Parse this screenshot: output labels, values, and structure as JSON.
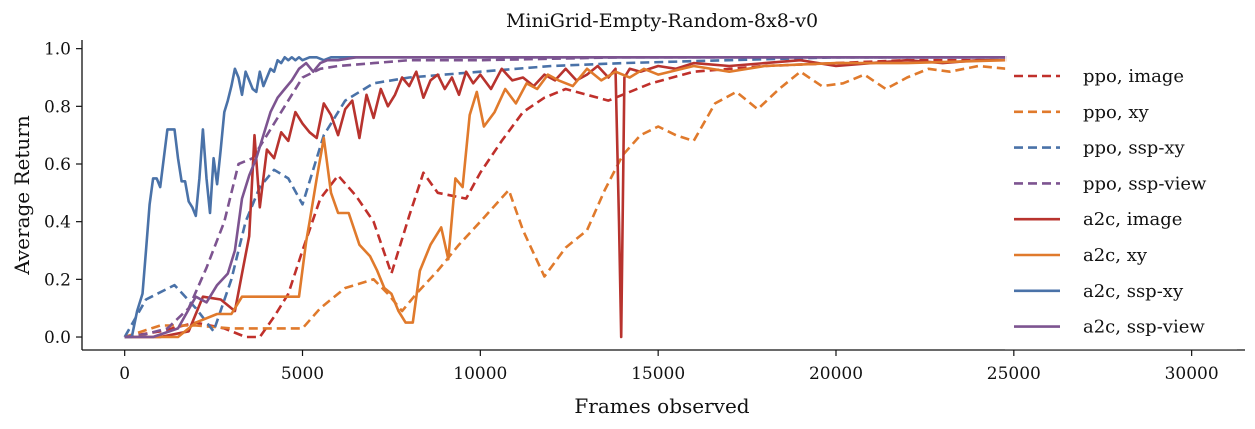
{
  "chart_data": {
    "type": "line",
    "title": "MiniGrid-Empty-Random-8x8-v0",
    "xlabel": "Frames observed",
    "ylabel": "Average Return",
    "xlim": [
      -1200,
      31500
    ],
    "ylim": [
      -0.045,
      1.03
    ],
    "xticks": [
      0,
      5000,
      10000,
      15000,
      20000,
      25000,
      30000
    ],
    "xtick_labels": [
      "0",
      "5000",
      "10000",
      "15000",
      "20000",
      "25000",
      "30000"
    ],
    "yticks": [
      0.0,
      0.2,
      0.4,
      0.6,
      0.8,
      1.0
    ],
    "ytick_labels": [
      "0.0",
      "0.2",
      "0.4",
      "0.6",
      "0.8",
      "1.0"
    ],
    "grid": false,
    "legend_position": "right",
    "series": [
      {
        "name": "ppo, image",
        "color": "#c0302b",
        "dash": "dashed",
        "width": 2.6,
        "x": [
          0,
          1000,
          2000,
          2800,
          3400,
          3800,
          4200,
          4600,
          5000,
          5500,
          6000,
          6500,
          7000,
          7500,
          8000,
          8400,
          8800,
          9200,
          9600,
          10000,
          10600,
          11200,
          11800,
          12400,
          13000,
          13600,
          14200,
          14800,
          15400,
          16000,
          17000,
          18000,
          20000,
          22000,
          24800
        ],
        "y": [
          0,
          0.02,
          0.05,
          0.03,
          0,
          0,
          0.07,
          0.15,
          0.3,
          0.48,
          0.56,
          0.49,
          0.4,
          0.22,
          0.42,
          0.57,
          0.5,
          0.49,
          0.48,
          0.57,
          0.68,
          0.78,
          0.83,
          0.86,
          0.84,
          0.82,
          0.85,
          0.88,
          0.9,
          0.92,
          0.93,
          0.94,
          0.95,
          0.96,
          0.96
        ]
      },
      {
        "name": "ppo, xy",
        "color": "#e07a2c",
        "dash": "dashed",
        "width": 2.6,
        "x": [
          0,
          1000,
          2000,
          3000,
          4000,
          5000,
          5500,
          6200,
          7000,
          7400,
          7800,
          8200,
          8800,
          9400,
          10000,
          10800,
          11200,
          11800,
          12400,
          13000,
          13500,
          14000,
          14500,
          15000,
          15500,
          16000,
          16600,
          17200,
          17800,
          18400,
          19000,
          19600,
          20200,
          20800,
          21400,
          22000,
          22600,
          23200,
          24000,
          24800
        ],
        "y": [
          0,
          0.04,
          0.04,
          0.03,
          0.03,
          0.03,
          0.1,
          0.17,
          0.2,
          0.15,
          0.09,
          0.15,
          0.23,
          0.32,
          0.4,
          0.51,
          0.37,
          0.21,
          0.31,
          0.37,
          0.51,
          0.63,
          0.7,
          0.73,
          0.7,
          0.68,
          0.81,
          0.85,
          0.79,
          0.86,
          0.92,
          0.87,
          0.88,
          0.91,
          0.86,
          0.9,
          0.93,
          0.92,
          0.94,
          0.93
        ]
      },
      {
        "name": "ppo, ssp-xy",
        "color": "#4a72a8",
        "dash": "dashed",
        "width": 2.6,
        "x": [
          0,
          600,
          1400,
          2000,
          2500,
          3000,
          3400,
          3800,
          4200,
          4600,
          5000,
          5600,
          6200,
          7000,
          8000,
          10000,
          12000,
          14000,
          17000,
          20000,
          24800
        ],
        "y": [
          0,
          0.13,
          0.18,
          0.1,
          0.02,
          0.2,
          0.4,
          0.52,
          0.58,
          0.55,
          0.46,
          0.7,
          0.82,
          0.88,
          0.9,
          0.92,
          0.94,
          0.95,
          0.96,
          0.97,
          0.97
        ]
      },
      {
        "name": "ppo, ssp-view",
        "color": "#7d5490",
        "dash": "dashed",
        "width": 2.6,
        "x": [
          0,
          600,
          1200,
          1800,
          2300,
          2800,
          3200,
          3600,
          4000,
          4500,
          5000,
          5500,
          6000,
          7000,
          8000,
          10000,
          14000,
          20000,
          24800
        ],
        "y": [
          0,
          0.01,
          0.03,
          0.1,
          0.24,
          0.4,
          0.6,
          0.62,
          0.7,
          0.8,
          0.9,
          0.93,
          0.94,
          0.95,
          0.96,
          0.96,
          0.97,
          0.97,
          0.97
        ]
      },
      {
        "name": "a2c, image",
        "color": "#b8332e",
        "dash": "solid",
        "width": 2.6,
        "x": [
          0,
          1000,
          1800,
          2200,
          2700,
          3100,
          3300,
          3500,
          3650,
          3800,
          4000,
          4200,
          4400,
          4600,
          4800,
          5000,
          5200,
          5400,
          5600,
          5800,
          6000,
          6200,
          6400,
          6600,
          6800,
          7000,
          7200,
          7400,
          7600,
          7800,
          8000,
          8200,
          8400,
          8600,
          8800,
          9000,
          9200,
          9400,
          9600,
          9800,
          10000,
          10300,
          10600,
          10900,
          11200,
          11500,
          11800,
          12100,
          12400,
          12700,
          13000,
          13300,
          13600,
          13800,
          13900,
          13960,
          14050,
          14200,
          14500,
          15000,
          15500,
          16000,
          17000,
          18000,
          19000,
          20000,
          21000,
          22000,
          23000,
          24000,
          24800
        ],
        "y": [
          0,
          0,
          0.02,
          0.14,
          0.13,
          0.09,
          0.22,
          0.35,
          0.7,
          0.45,
          0.65,
          0.62,
          0.71,
          0.68,
          0.78,
          0.74,
          0.71,
          0.69,
          0.81,
          0.77,
          0.7,
          0.79,
          0.82,
          0.69,
          0.84,
          0.76,
          0.86,
          0.8,
          0.84,
          0.9,
          0.87,
          0.92,
          0.83,
          0.89,
          0.91,
          0.86,
          0.9,
          0.84,
          0.92,
          0.88,
          0.91,
          0.86,
          0.93,
          0.89,
          0.9,
          0.87,
          0.91,
          0.89,
          0.93,
          0.89,
          0.91,
          0.94,
          0.9,
          0.93,
          0.4,
          0.0,
          0.9,
          0.93,
          0.92,
          0.94,
          0.93,
          0.95,
          0.94,
          0.95,
          0.96,
          0.94,
          0.95,
          0.96,
          0.95,
          0.96,
          0.96
        ]
      },
      {
        "name": "a2c, xy",
        "color": "#e07a2c",
        "dash": "solid",
        "width": 2.6,
        "x": [
          0,
          1500,
          2000,
          2600,
          3000,
          3300,
          3700,
          4000,
          4300,
          4600,
          4900,
          5100,
          5200,
          5400,
          5600,
          5800,
          6000,
          6300,
          6600,
          6900,
          7100,
          7300,
          7500,
          7700,
          7900,
          8100,
          8300,
          8600,
          8900,
          9100,
          9300,
          9500,
          9700,
          9900,
          10100,
          10400,
          10700,
          11000,
          11300,
          11600,
          11900,
          12200,
          12600,
          13000,
          13400,
          13800,
          14200,
          14600,
          15000,
          16000,
          17000,
          18000,
          20000,
          22000,
          24800
        ],
        "y": [
          0,
          0,
          0.05,
          0.08,
          0.08,
          0.14,
          0.14,
          0.14,
          0.14,
          0.14,
          0.14,
          0.33,
          0.4,
          0.55,
          0.69,
          0.5,
          0.43,
          0.43,
          0.32,
          0.28,
          0.23,
          0.17,
          0.15,
          0.09,
          0.05,
          0.05,
          0.23,
          0.32,
          0.38,
          0.27,
          0.55,
          0.52,
          0.77,
          0.85,
          0.73,
          0.78,
          0.86,
          0.81,
          0.88,
          0.86,
          0.91,
          0.89,
          0.87,
          0.93,
          0.89,
          0.92,
          0.9,
          0.93,
          0.91,
          0.94,
          0.92,
          0.94,
          0.95,
          0.95,
          0.96
        ]
      },
      {
        "name": "a2c, ssp-xy",
        "color": "#4a72a8",
        "dash": "solid",
        "width": 2.6,
        "x": [
          0,
          200,
          350,
          500,
          600,
          700,
          800,
          900,
          1000,
          1100,
          1200,
          1300,
          1400,
          1500,
          1600,
          1700,
          1800,
          1900,
          2000,
          2100,
          2200,
          2300,
          2400,
          2500,
          2600,
          2700,
          2800,
          2900,
          3000,
          3100,
          3200,
          3300,
          3400,
          3500,
          3600,
          3700,
          3800,
          3900,
          4000,
          4100,
          4200,
          4300,
          4400,
          4500,
          4600,
          4700,
          4800,
          4900,
          5000,
          5200,
          5400,
          5600,
          5800,
          6000,
          6500,
          7000,
          8000,
          9000,
          10000,
          12000,
          14000,
          16000,
          18000,
          20000,
          22000,
          24800
        ],
        "y": [
          0,
          0,
          0.09,
          0.15,
          0.3,
          0.46,
          0.55,
          0.55,
          0.52,
          0.62,
          0.72,
          0.72,
          0.72,
          0.62,
          0.54,
          0.54,
          0.47,
          0.45,
          0.42,
          0.55,
          0.72,
          0.55,
          0.43,
          0.62,
          0.53,
          0.65,
          0.78,
          0.82,
          0.87,
          0.93,
          0.9,
          0.84,
          0.92,
          0.89,
          0.86,
          0.85,
          0.92,
          0.87,
          0.9,
          0.93,
          0.92,
          0.96,
          0.95,
          0.97,
          0.96,
          0.97,
          0.96,
          0.97,
          0.96,
          0.97,
          0.97,
          0.96,
          0.97,
          0.97,
          0.97,
          0.97,
          0.97,
          0.97,
          0.97,
          0.97,
          0.97,
          0.97,
          0.97,
          0.97,
          0.97,
          0.97
        ]
      },
      {
        "name": "a2c, ssp-view",
        "color": "#7d5490",
        "dash": "solid",
        "width": 2.6,
        "x": [
          0,
          800,
          1500,
          2000,
          2300,
          2600,
          2900,
          3100,
          3300,
          3500,
          3700,
          3900,
          4100,
          4300,
          4500,
          4700,
          4900,
          5100,
          5300,
          5500,
          5700,
          6000,
          6500,
          7000,
          8000,
          10000,
          13000,
          16000,
          20000,
          24800
        ],
        "y": [
          0,
          0,
          0.03,
          0.14,
          0.12,
          0.18,
          0.22,
          0.3,
          0.48,
          0.56,
          0.62,
          0.7,
          0.78,
          0.83,
          0.86,
          0.89,
          0.93,
          0.95,
          0.92,
          0.95,
          0.96,
          0.96,
          0.97,
          0.97,
          0.97,
          0.97,
          0.97,
          0.97,
          0.97,
          0.97
        ]
      }
    ]
  }
}
